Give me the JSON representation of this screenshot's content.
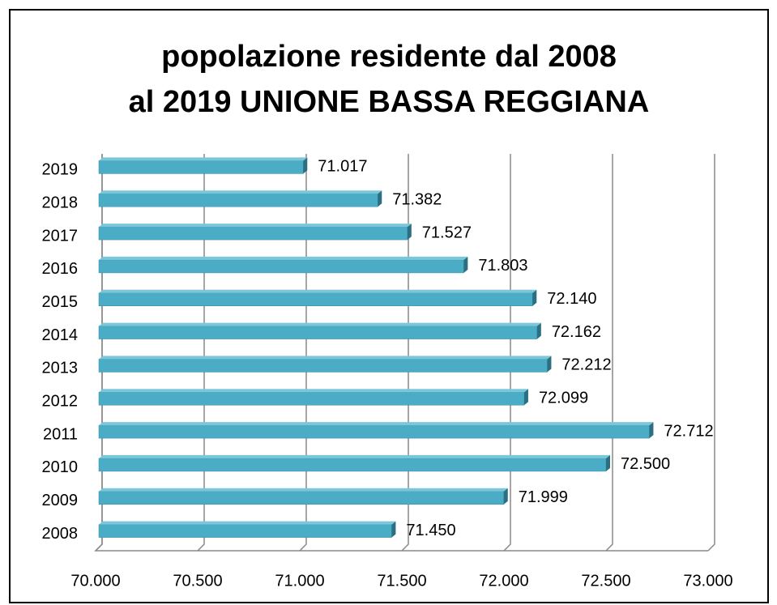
{
  "chart_data": {
    "type": "bar",
    "orientation": "horizontal",
    "title": "popolazione residente dal 2008 al 2019 UNIONE BASSA REGGIANA",
    "categories": [
      "2008",
      "2009",
      "2010",
      "2011",
      "2012",
      "2013",
      "2014",
      "2015",
      "2016",
      "2017",
      "2018",
      "2019"
    ],
    "values": [
      71450,
      71999,
      72500,
      72712,
      72099,
      72212,
      72162,
      72140,
      71803,
      71527,
      71382,
      71017
    ],
    "value_labels": [
      "71.450",
      "71.999",
      "72.500",
      "72.712",
      "72.099",
      "72.212",
      "72.162",
      "72.140",
      "71.803",
      "71.527",
      "71.382",
      "71.017"
    ],
    "color": "#4bacc6",
    "xlim": [
      70000,
      73000
    ],
    "xticks": [
      {
        "value": 70000,
        "label": "70.000"
      },
      {
        "value": 70500,
        "label": "70.500"
      },
      {
        "value": 71000,
        "label": "71.000"
      },
      {
        "value": 71500,
        "label": "71.500"
      },
      {
        "value": 72000,
        "label": "72.000"
      },
      {
        "value": 72500,
        "label": "72.500"
      },
      {
        "value": 73000,
        "label": "73.000"
      }
    ],
    "grid": true
  }
}
